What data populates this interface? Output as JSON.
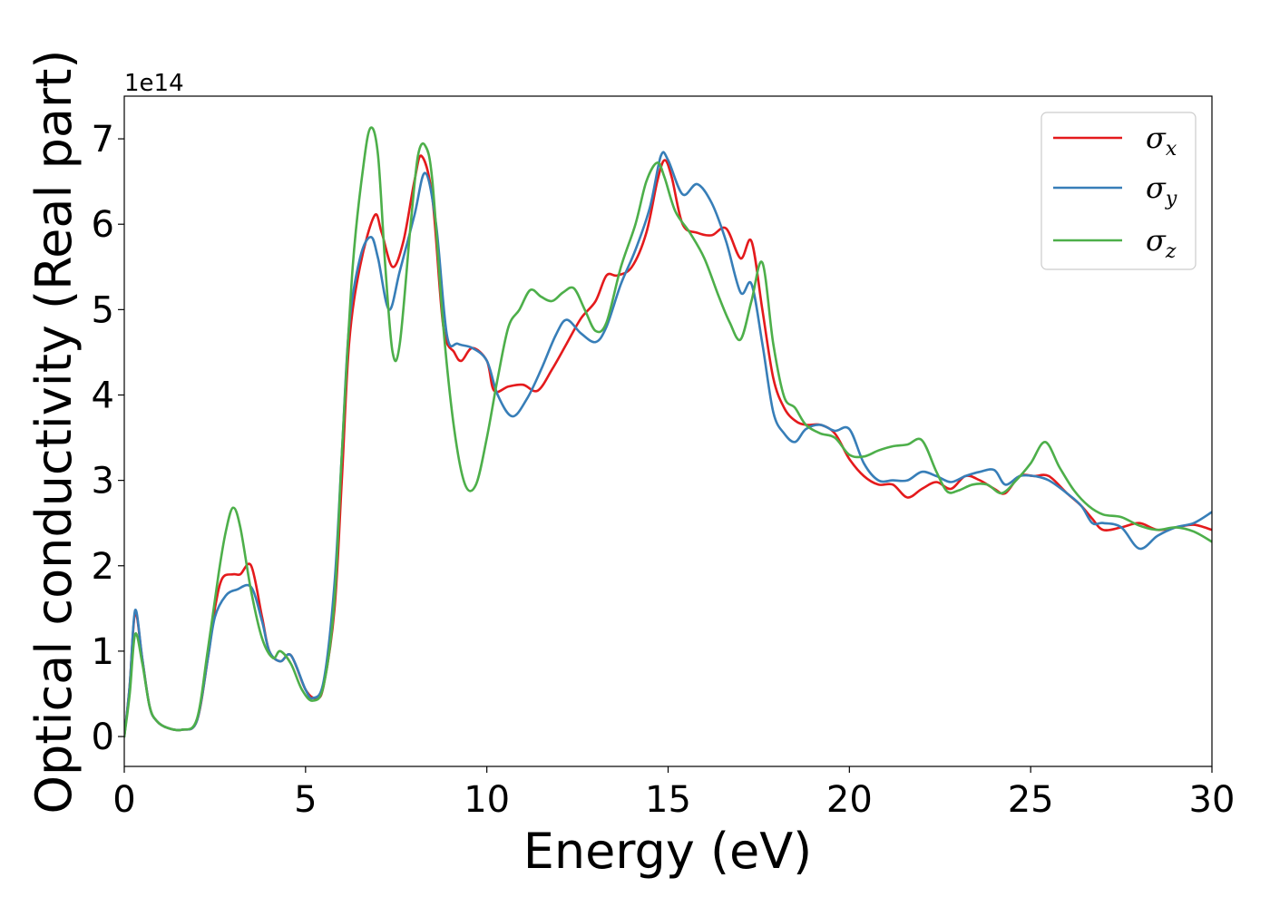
{
  "chart_data": {
    "type": "line",
    "xlabel": "Energy (eV)",
    "ylabel": "Optical conductivity (Real part)",
    "y_offset_text": "1e14",
    "y_scale": 100000000000000.0,
    "xlim": [
      0,
      30
    ],
    "ylim": [
      -0.35,
      7.5
    ],
    "xticks": [
      0,
      5,
      10,
      15,
      20,
      25,
      30
    ],
    "xtick_labels": [
      "0",
      "5",
      "10",
      "15",
      "20",
      "25",
      "30"
    ],
    "yticks": [
      0,
      1,
      2,
      3,
      4,
      5,
      6,
      7
    ],
    "ytick_labels": [
      "0",
      "1",
      "2",
      "3",
      "4",
      "5",
      "6",
      "7"
    ],
    "grid": false,
    "legend_position": "top-right",
    "series": [
      {
        "name": "σx",
        "symbol": "σ",
        "subscript": "x",
        "color": "#e41a1c",
        "points": [
          [
            0,
            0
          ],
          [
            0.15,
            0.6
          ],
          [
            0.3,
            1.45
          ],
          [
            0.5,
            0.9
          ],
          [
            0.7,
            0.35
          ],
          [
            0.9,
            0.18
          ],
          [
            1.2,
            0.1
          ],
          [
            1.6,
            0.08
          ],
          [
            2.0,
            0.18
          ],
          [
            2.3,
            0.9
          ],
          [
            2.5,
            1.5
          ],
          [
            2.7,
            1.85
          ],
          [
            3.0,
            1.9
          ],
          [
            3.2,
            1.9
          ],
          [
            3.5,
            2.0
          ],
          [
            3.8,
            1.4
          ],
          [
            4.0,
            1.0
          ],
          [
            4.3,
            0.88
          ],
          [
            4.6,
            0.95
          ],
          [
            5.0,
            0.55
          ],
          [
            5.3,
            0.45
          ],
          [
            5.5,
            0.6
          ],
          [
            5.8,
            1.5
          ],
          [
            6.0,
            3.0
          ],
          [
            6.2,
            4.6
          ],
          [
            6.5,
            5.5
          ],
          [
            6.9,
            6.1
          ],
          [
            7.1,
            5.9
          ],
          [
            7.4,
            5.5
          ],
          [
            7.7,
            5.8
          ],
          [
            8.0,
            6.5
          ],
          [
            8.2,
            6.8
          ],
          [
            8.5,
            6.3
          ],
          [
            8.8,
            4.8
          ],
          [
            9.1,
            4.5
          ],
          [
            9.3,
            4.4
          ],
          [
            9.6,
            4.55
          ],
          [
            10.0,
            4.4
          ],
          [
            10.2,
            4.05
          ],
          [
            10.6,
            4.1
          ],
          [
            11.0,
            4.12
          ],
          [
            11.4,
            4.05
          ],
          [
            11.8,
            4.3
          ],
          [
            12.2,
            4.6
          ],
          [
            12.6,
            4.9
          ],
          [
            13.0,
            5.1
          ],
          [
            13.3,
            5.4
          ],
          [
            13.6,
            5.4
          ],
          [
            14.0,
            5.5
          ],
          [
            14.4,
            5.9
          ],
          [
            14.7,
            6.5
          ],
          [
            14.9,
            6.75
          ],
          [
            15.1,
            6.55
          ],
          [
            15.4,
            6.0
          ],
          [
            15.8,
            5.9
          ],
          [
            16.2,
            5.87
          ],
          [
            16.6,
            5.95
          ],
          [
            17.0,
            5.6
          ],
          [
            17.3,
            5.8
          ],
          [
            17.6,
            5.0
          ],
          [
            17.9,
            4.2
          ],
          [
            18.2,
            3.85
          ],
          [
            18.5,
            3.7
          ],
          [
            18.8,
            3.65
          ],
          [
            19.2,
            3.65
          ],
          [
            19.6,
            3.55
          ],
          [
            20.0,
            3.25
          ],
          [
            20.4,
            3.05
          ],
          [
            20.8,
            2.95
          ],
          [
            21.2,
            2.95
          ],
          [
            21.6,
            2.8
          ],
          [
            22.0,
            2.9
          ],
          [
            22.4,
            2.98
          ],
          [
            22.8,
            2.9
          ],
          [
            23.2,
            3.05
          ],
          [
            23.6,
            3.0
          ],
          [
            24.0,
            2.9
          ],
          [
            24.3,
            2.85
          ],
          [
            24.7,
            3.05
          ],
          [
            25.1,
            3.05
          ],
          [
            25.5,
            3.05
          ],
          [
            26.0,
            2.85
          ],
          [
            26.4,
            2.7
          ],
          [
            26.7,
            2.55
          ],
          [
            27.0,
            2.42
          ],
          [
            27.5,
            2.45
          ],
          [
            28.0,
            2.5
          ],
          [
            28.5,
            2.42
          ],
          [
            29.0,
            2.45
          ],
          [
            29.5,
            2.48
          ],
          [
            30.0,
            2.42
          ]
        ]
      },
      {
        "name": "σy",
        "symbol": "σ",
        "subscript": "y",
        "color": "#377eb8",
        "points": [
          [
            0,
            0
          ],
          [
            0.15,
            0.6
          ],
          [
            0.3,
            1.48
          ],
          [
            0.5,
            0.9
          ],
          [
            0.7,
            0.35
          ],
          [
            0.9,
            0.18
          ],
          [
            1.2,
            0.1
          ],
          [
            1.6,
            0.08
          ],
          [
            2.0,
            0.18
          ],
          [
            2.3,
            0.9
          ],
          [
            2.5,
            1.4
          ],
          [
            2.8,
            1.65
          ],
          [
            3.1,
            1.72
          ],
          [
            3.5,
            1.75
          ],
          [
            3.8,
            1.35
          ],
          [
            4.0,
            1.0
          ],
          [
            4.3,
            0.88
          ],
          [
            4.6,
            0.95
          ],
          [
            5.0,
            0.55
          ],
          [
            5.2,
            0.45
          ],
          [
            5.5,
            0.65
          ],
          [
            5.8,
            1.8
          ],
          [
            6.0,
            3.3
          ],
          [
            6.2,
            4.8
          ],
          [
            6.5,
            5.6
          ],
          [
            6.8,
            5.85
          ],
          [
            7.0,
            5.6
          ],
          [
            7.3,
            5.0
          ],
          [
            7.6,
            5.45
          ],
          [
            8.0,
            6.1
          ],
          [
            8.3,
            6.6
          ],
          [
            8.6,
            6.0
          ],
          [
            8.9,
            4.7
          ],
          [
            9.2,
            4.6
          ],
          [
            9.6,
            4.55
          ],
          [
            10.0,
            4.4
          ],
          [
            10.3,
            4.0
          ],
          [
            10.7,
            3.75
          ],
          [
            11.1,
            3.95
          ],
          [
            11.5,
            4.3
          ],
          [
            11.9,
            4.7
          ],
          [
            12.2,
            4.88
          ],
          [
            12.6,
            4.72
          ],
          [
            13.0,
            4.62
          ],
          [
            13.3,
            4.8
          ],
          [
            13.7,
            5.3
          ],
          [
            14.1,
            5.7
          ],
          [
            14.5,
            6.2
          ],
          [
            14.8,
            6.8
          ],
          [
            15.0,
            6.75
          ],
          [
            15.4,
            6.35
          ],
          [
            15.8,
            6.47
          ],
          [
            16.2,
            6.25
          ],
          [
            16.6,
            5.8
          ],
          [
            17.0,
            5.2
          ],
          [
            17.3,
            5.3
          ],
          [
            17.6,
            4.6
          ],
          [
            17.9,
            3.8
          ],
          [
            18.2,
            3.55
          ],
          [
            18.5,
            3.45
          ],
          [
            18.8,
            3.6
          ],
          [
            19.2,
            3.65
          ],
          [
            19.6,
            3.58
          ],
          [
            20.0,
            3.6
          ],
          [
            20.4,
            3.2
          ],
          [
            20.8,
            3.0
          ],
          [
            21.2,
            3.0
          ],
          [
            21.6,
            3.0
          ],
          [
            22.0,
            3.1
          ],
          [
            22.4,
            3.05
          ],
          [
            22.8,
            2.98
          ],
          [
            23.2,
            3.05
          ],
          [
            23.6,
            3.1
          ],
          [
            24.0,
            3.12
          ],
          [
            24.3,
            2.95
          ],
          [
            24.7,
            3.05
          ],
          [
            25.1,
            3.05
          ],
          [
            25.5,
            3.0
          ],
          [
            26.0,
            2.85
          ],
          [
            26.4,
            2.7
          ],
          [
            26.7,
            2.5
          ],
          [
            27.0,
            2.5
          ],
          [
            27.5,
            2.45
          ],
          [
            28.0,
            2.2
          ],
          [
            28.5,
            2.35
          ],
          [
            29.0,
            2.45
          ],
          [
            29.5,
            2.5
          ],
          [
            30.0,
            2.63
          ]
        ]
      },
      {
        "name": "σz",
        "symbol": "σ",
        "subscript": "z",
        "color": "#4daf4a",
        "points": [
          [
            0,
            0
          ],
          [
            0.15,
            0.5
          ],
          [
            0.3,
            1.2
          ],
          [
            0.5,
            0.85
          ],
          [
            0.7,
            0.35
          ],
          [
            0.9,
            0.18
          ],
          [
            1.2,
            0.1
          ],
          [
            1.6,
            0.08
          ],
          [
            2.0,
            0.2
          ],
          [
            2.3,
            1.0
          ],
          [
            2.6,
            1.9
          ],
          [
            2.8,
            2.4
          ],
          [
            3.0,
            2.68
          ],
          [
            3.2,
            2.45
          ],
          [
            3.5,
            1.7
          ],
          [
            3.8,
            1.15
          ],
          [
            4.1,
            0.92
          ],
          [
            4.3,
            1.0
          ],
          [
            4.6,
            0.85
          ],
          [
            4.9,
            0.55
          ],
          [
            5.2,
            0.42
          ],
          [
            5.5,
            0.6
          ],
          [
            5.8,
            1.6
          ],
          [
            6.0,
            3.3
          ],
          [
            6.3,
            5.5
          ],
          [
            6.6,
            6.7
          ],
          [
            6.8,
            7.13
          ],
          [
            7.0,
            6.8
          ],
          [
            7.2,
            5.5
          ],
          [
            7.4,
            4.5
          ],
          [
            7.6,
            4.6
          ],
          [
            7.9,
            6.0
          ],
          [
            8.1,
            6.8
          ],
          [
            8.3,
            6.92
          ],
          [
            8.5,
            6.5
          ],
          [
            8.8,
            4.8
          ],
          [
            9.1,
            3.6
          ],
          [
            9.4,
            2.95
          ],
          [
            9.7,
            2.95
          ],
          [
            10.0,
            3.5
          ],
          [
            10.3,
            4.2
          ],
          [
            10.6,
            4.8
          ],
          [
            10.9,
            5.0
          ],
          [
            11.2,
            5.23
          ],
          [
            11.5,
            5.15
          ],
          [
            11.8,
            5.1
          ],
          [
            12.1,
            5.2
          ],
          [
            12.4,
            5.25
          ],
          [
            12.7,
            5.0
          ],
          [
            13.0,
            4.75
          ],
          [
            13.3,
            4.85
          ],
          [
            13.7,
            5.5
          ],
          [
            14.1,
            6.0
          ],
          [
            14.4,
            6.5
          ],
          [
            14.7,
            6.72
          ],
          [
            14.9,
            6.55
          ],
          [
            15.2,
            6.15
          ],
          [
            15.6,
            5.9
          ],
          [
            16.0,
            5.6
          ],
          [
            16.4,
            5.15
          ],
          [
            16.7,
            4.85
          ],
          [
            17.0,
            4.65
          ],
          [
            17.3,
            5.1
          ],
          [
            17.6,
            5.55
          ],
          [
            17.9,
            4.6
          ],
          [
            18.2,
            3.98
          ],
          [
            18.5,
            3.85
          ],
          [
            18.8,
            3.65
          ],
          [
            19.2,
            3.55
          ],
          [
            19.6,
            3.5
          ],
          [
            20.0,
            3.3
          ],
          [
            20.4,
            3.28
          ],
          [
            20.8,
            3.35
          ],
          [
            21.2,
            3.4
          ],
          [
            21.6,
            3.42
          ],
          [
            22.0,
            3.47
          ],
          [
            22.4,
            3.1
          ],
          [
            22.7,
            2.87
          ],
          [
            23.0,
            2.88
          ],
          [
            23.4,
            2.95
          ],
          [
            23.8,
            2.95
          ],
          [
            24.2,
            2.85
          ],
          [
            24.6,
            3.0
          ],
          [
            25.0,
            3.2
          ],
          [
            25.4,
            3.45
          ],
          [
            25.8,
            3.15
          ],
          [
            26.2,
            2.88
          ],
          [
            26.6,
            2.7
          ],
          [
            27.0,
            2.6
          ],
          [
            27.5,
            2.57
          ],
          [
            28.0,
            2.47
          ],
          [
            28.5,
            2.42
          ],
          [
            29.0,
            2.45
          ],
          [
            29.5,
            2.4
          ],
          [
            30.0,
            2.28
          ]
        ]
      }
    ]
  }
}
